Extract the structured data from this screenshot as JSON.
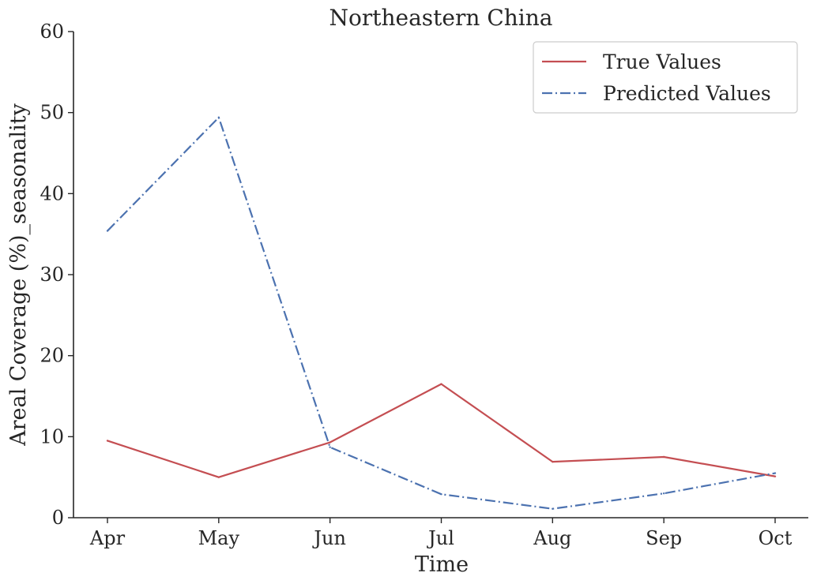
{
  "chart_data": {
    "type": "line",
    "title": "Northeastern China",
    "xlabel": "Time",
    "ylabel": "Areal Coverage (%)_seasonality",
    "categories": [
      "Apr",
      "May",
      "Jun",
      "Jul",
      "Aug",
      "Sep",
      "Oct"
    ],
    "ylim": [
      0,
      60
    ],
    "yticks": [
      "0",
      "10",
      "20",
      "30",
      "40",
      "50",
      "60"
    ],
    "grid": false,
    "legend_position": "top-right",
    "series": [
      {
        "name": "True Values",
        "line_style": "solid",
        "color": "#c44e52",
        "values": [
          9.5,
          5.0,
          9.3,
          16.5,
          6.9,
          7.5,
          5.1
        ]
      },
      {
        "name": "Predicted Values",
        "line_style": "dashdot",
        "color": "#4c72b0",
        "values": [
          35.4,
          49.4,
          8.7,
          2.9,
          1.1,
          3.0,
          5.5
        ]
      }
    ]
  }
}
